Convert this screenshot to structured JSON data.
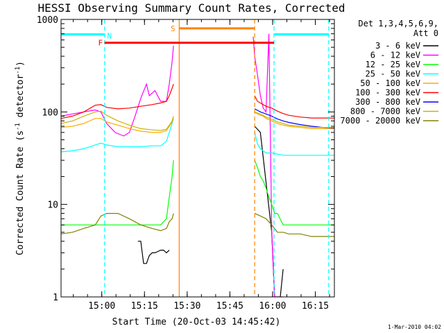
{
  "chart_data": {
    "type": "line",
    "title": "HESSI Observing Summary Count Rates, Corrected",
    "xlabel": "Start Time (20-Oct-03 14:45:42)",
    "ylabel_main": "Corrected Count Rate (s",
    "ylabel_sup1": "-1",
    "ylabel_mid": " detector",
    "ylabel_sup2": "-1",
    "ylabel_end": ")",
    "x_unit": "minutes after 14:45:42",
    "xlim": [
      0,
      96
    ],
    "ylim": [
      1,
      1000
    ],
    "y_scale": "log",
    "x_ticks": [
      {
        "label": "15:00",
        "x": 14.3
      },
      {
        "label": "15:15",
        "x": 29.3
      },
      {
        "label": "15:30",
        "x": 44.3
      },
      {
        "label": "15:45",
        "x": 59.3
      },
      {
        "label": "16:00",
        "x": 74.3
      },
      {
        "label": "16:15",
        "x": 89.3
      }
    ],
    "y_ticks": [
      {
        "label": "1",
        "y": 1
      },
      {
        "label": "10",
        "y": 10
      },
      {
        "label": "100",
        "y": 100
      },
      {
        "label": "1000",
        "y": 1000
      }
    ],
    "legend": {
      "placement": "right",
      "header_line1": "Det 1,3,4,5,6,9,",
      "header_line2": "Att 0"
    },
    "series": [
      {
        "name": "3 - 6 keV",
        "color": "#000000",
        "segments": [
          [
            [
              27,
              4
            ],
            [
              28,
              4
            ],
            [
              29,
              2.3
            ],
            [
              30,
              2.3
            ],
            [
              31,
              2.8
            ],
            [
              32,
              3
            ],
            [
              33,
              3
            ],
            [
              34,
              3.1
            ],
            [
              35,
              3.2
            ],
            [
              36,
              3.2
            ],
            [
              37,
              3
            ],
            [
              38,
              3.2
            ]
          ],
          [
            [
              68,
              70
            ],
            [
              70,
              60
            ],
            [
              74,
              5
            ],
            [
              75,
              1
            ],
            [
              76,
              1
            ],
            [
              77,
              1
            ],
            [
              78,
              2
            ]
          ]
        ]
      },
      {
        "name": "6 - 12 keV",
        "color": "#ff00ff",
        "segments": [
          [
            [
              0,
              90
            ],
            [
              4,
              95
            ],
            [
              8,
              100
            ],
            [
              12,
              105
            ],
            [
              14,
              100
            ],
            [
              16,
              75
            ],
            [
              19,
              60
            ],
            [
              22,
              55
            ],
            [
              24,
              60
            ],
            [
              26,
              90
            ],
            [
              28,
              140
            ],
            [
              30,
              200
            ],
            [
              31,
              150
            ],
            [
              33,
              170
            ],
            [
              35,
              130
            ],
            [
              37,
              130
            ],
            [
              38,
              200
            ],
            [
              39,
              350
            ],
            [
              39.5,
              520
            ]
          ],
          [
            [
              67.5,
              650
            ],
            [
              68,
              400
            ],
            [
              69,
              250
            ],
            [
              70,
              150
            ],
            [
              71,
              110
            ],
            [
              72,
              100
            ],
            [
              73,
              700
            ],
            [
              74,
              5
            ],
            [
              75,
              1
            ],
            [
              76,
              1
            ],
            [
              77,
              1
            ],
            [
              78,
              1
            ]
          ]
        ]
      },
      {
        "name": "12 - 25 keV",
        "color": "#00ff00",
        "segments": [
          [
            [
              0,
              6
            ],
            [
              4,
              6
            ],
            [
              8,
              6
            ],
            [
              12,
              6
            ],
            [
              16,
              6
            ],
            [
              20,
              6
            ],
            [
              24,
              6
            ],
            [
              28,
              6
            ],
            [
              32,
              6
            ],
            [
              35,
              6
            ],
            [
              37,
              7
            ],
            [
              38,
              12
            ],
            [
              39,
              20
            ],
            [
              39.5,
              30
            ]
          ],
          [
            [
              68,
              30
            ],
            [
              69,
              25
            ],
            [
              70,
              20
            ],
            [
              71,
              18
            ],
            [
              72,
              15
            ],
            [
              73,
              12
            ],
            [
              74,
              10
            ],
            [
              75,
              8
            ],
            [
              76,
              8
            ],
            [
              78,
              6
            ],
            [
              80,
              6
            ],
            [
              84,
              6
            ],
            [
              88,
              6
            ],
            [
              92,
              6
            ],
            [
              96,
              6
            ]
          ]
        ]
      },
      {
        "name": "25 - 50 keV",
        "color": "#00ffff",
        "segments": [
          [
            [
              0,
              37
            ],
            [
              4,
              38
            ],
            [
              8,
              40
            ],
            [
              12,
              44
            ],
            [
              14,
              46
            ],
            [
              16,
              44
            ],
            [
              20,
              42
            ],
            [
              24,
              42
            ],
            [
              28,
              42
            ],
            [
              32,
              43
            ],
            [
              35,
              43
            ],
            [
              37,
              48
            ],
            [
              38,
              60
            ],
            [
              39,
              75
            ],
            [
              39.5,
              85
            ]
          ],
          [
            [
              68,
              60
            ],
            [
              69,
              45
            ],
            [
              70,
              40
            ],
            [
              71,
              38
            ],
            [
              72,
              36
            ],
            [
              74,
              36
            ],
            [
              76,
              35
            ],
            [
              78,
              34
            ],
            [
              80,
              34
            ],
            [
              84,
              34
            ],
            [
              88,
              34
            ],
            [
              92,
              34
            ],
            [
              96,
              34
            ]
          ]
        ]
      },
      {
        "name": "50 - 100 keV",
        "color": "#ffaa00",
        "segments": [
          [
            [
              0,
              68
            ],
            [
              4,
              70
            ],
            [
              8,
              75
            ],
            [
              12,
              85
            ],
            [
              14,
              85
            ],
            [
              16,
              78
            ],
            [
              20,
              72
            ],
            [
              24,
              66
            ],
            [
              28,
              62
            ],
            [
              32,
              60
            ],
            [
              35,
              60
            ],
            [
              37,
              63
            ],
            [
              38,
              70
            ],
            [
              39,
              78
            ],
            [
              39.5,
              85
            ]
          ],
          [
            [
              68,
              100
            ],
            [
              69,
              95
            ],
            [
              70,
              92
            ],
            [
              71,
              90
            ],
            [
              72,
              85
            ],
            [
              74,
              80
            ],
            [
              76,
              75
            ],
            [
              78,
              72
            ],
            [
              80,
              70
            ],
            [
              84,
              68
            ],
            [
              88,
              66
            ],
            [
              92,
              66
            ],
            [
              96,
              66
            ]
          ]
        ]
      },
      {
        "name": "100 - 300 keV",
        "color": "#ff0000",
        "segments": [
          [
            [
              0,
              85
            ],
            [
              4,
              90
            ],
            [
              8,
              100
            ],
            [
              12,
              118
            ],
            [
              14,
              120
            ],
            [
              16,
              112
            ],
            [
              20,
              108
            ],
            [
              24,
              110
            ],
            [
              28,
              115
            ],
            [
              32,
              120
            ],
            [
              35,
              125
            ],
            [
              37,
              130
            ],
            [
              38,
              150
            ],
            [
              39,
              180
            ],
            [
              39.5,
              200
            ]
          ],
          [
            [
              68,
              150
            ],
            [
              69,
              130
            ],
            [
              70,
              125
            ],
            [
              71,
              120
            ],
            [
              72,
              115
            ],
            [
              74,
              110
            ],
            [
              76,
              102
            ],
            [
              78,
              96
            ],
            [
              80,
              92
            ],
            [
              84,
              88
            ],
            [
              88,
              86
            ],
            [
              92,
              86
            ],
            [
              96,
              86
            ]
          ]
        ]
      },
      {
        "name": "300 - 800 keV",
        "color": "#0000ff",
        "segments": [
          [
            [
              68,
              108
            ],
            [
              70,
              100
            ],
            [
              72,
              95
            ],
            [
              74,
              90
            ],
            [
              76,
              84
            ],
            [
              78,
              80
            ],
            [
              80,
              77
            ],
            [
              84,
              73
            ],
            [
              88,
              70
            ],
            [
              92,
              68
            ],
            [
              96,
              67
            ]
          ]
        ]
      },
      {
        "name": "800 - 7000 keV",
        "color": "#c8b400",
        "segments": [
          [
            [
              0,
              75
            ],
            [
              4,
              80
            ],
            [
              8,
              90
            ],
            [
              12,
              100
            ],
            [
              14,
              102
            ],
            [
              16,
              92
            ],
            [
              20,
              80
            ],
            [
              24,
              72
            ],
            [
              28,
              66
            ],
            [
              32,
              64
            ],
            [
              35,
              63
            ],
            [
              37,
              65
            ],
            [
              38,
              72
            ],
            [
              39,
              80
            ],
            [
              39.5,
              90
            ]
          ],
          [
            [
              68,
              100
            ],
            [
              70,
              95
            ],
            [
              72,
              88
            ],
            [
              74,
              83
            ],
            [
              76,
              78
            ],
            [
              78,
              75
            ],
            [
              80,
              72
            ],
            [
              84,
              70
            ],
            [
              88,
              68
            ],
            [
              92,
              68
            ],
            [
              96,
              68
            ]
          ]
        ]
      },
      {
        "name": "7000 - 20000 keV",
        "color": "#808000",
        "segments": [
          [
            [
              0,
              4.8
            ],
            [
              4,
              5
            ],
            [
              8,
              5.5
            ],
            [
              12,
              6
            ],
            [
              14,
              7.5
            ],
            [
              16,
              8
            ],
            [
              20,
              8
            ],
            [
              24,
              7
            ],
            [
              28,
              6
            ],
            [
              32,
              5.5
            ],
            [
              35,
              5.2
            ],
            [
              37,
              5.5
            ],
            [
              38,
              6.5
            ],
            [
              39,
              7
            ],
            [
              39.5,
              8
            ]
          ],
          [
            [
              68,
              8
            ],
            [
              70,
              7.5
            ],
            [
              72,
              7
            ],
            [
              74,
              6
            ],
            [
              76,
              5
            ],
            [
              78,
              5
            ],
            [
              80,
              4.8
            ],
            [
              84,
              4.8
            ],
            [
              88,
              4.5
            ],
            [
              92,
              4.5
            ],
            [
              96,
              4.5
            ]
          ]
        ]
      }
    ],
    "annotations": [
      {
        "label": "N",
        "color": "#00ffff",
        "x_start": 15.3,
        "x_end": 15.3,
        "y_bar": 690,
        "dashed_line_x": 15.3
      },
      {
        "label": "F",
        "color": "#ff0000",
        "x_start": 15.3,
        "x_end": 74.8,
        "y_bar": 560
      },
      {
        "label": "S",
        "color": "#ff8000",
        "x_start": 41.5,
        "x_end": 68,
        "y_bar": 800,
        "solid_line_x": 41.5,
        "dashed_line_x": 68
      }
    ],
    "cyan_bars": [
      [
        0,
        15.3
      ],
      [
        74.8,
        94
      ]
    ],
    "vlines": [
      {
        "x": 15.3,
        "color": "#00ffff",
        "dash": true
      },
      {
        "x": 41.5,
        "color": "#ff8000",
        "dash": false
      },
      {
        "x": 68,
        "color": "#ff8000",
        "dash": true
      },
      {
        "x": 74.8,
        "color": "#00ffff",
        "dash": true
      },
      {
        "x": 94,
        "color": "#00ffff",
        "dash": true
      }
    ],
    "footer_stamp": "1-Mar-2010 04:02"
  }
}
